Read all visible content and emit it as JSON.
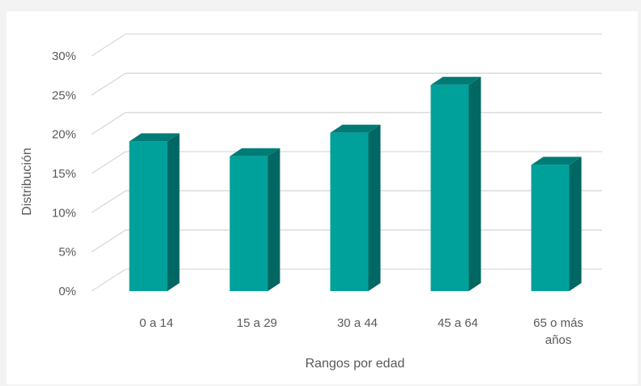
{
  "chart_data": {
    "type": "bar",
    "categories": [
      [
        "0 a 14"
      ],
      [
        "15 a 29"
      ],
      [
        "30 a 44"
      ],
      [
        "45 a 64"
      ],
      [
        "65 o más",
        "años"
      ]
    ],
    "values": [
      19.1,
      17.2,
      20.2,
      26.3,
      16.1
    ],
    "yticks": [
      "0%",
      "5%",
      "10%",
      "15%",
      "20%",
      "25%",
      "30%"
    ],
    "ylim": [
      0,
      30
    ],
    "xlabel": "Rangos por edad",
    "ylabel": "Distribución",
    "grid": true,
    "legend": "none",
    "style": "3d-column",
    "colors": {
      "bar_front": "#00a19b",
      "bar_side": "#006762",
      "bar_top": "#007c77",
      "grid": "#d9d9d9",
      "text": "#595959"
    }
  }
}
